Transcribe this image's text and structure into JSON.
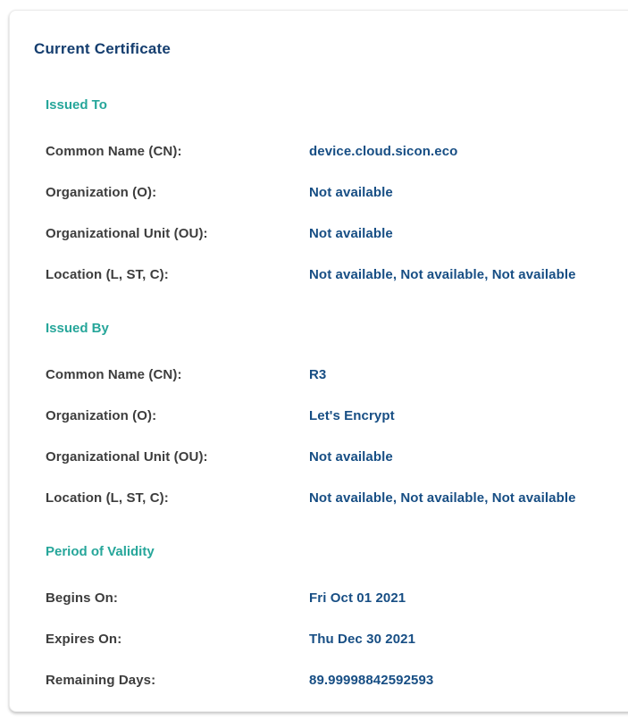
{
  "card": {
    "title": "Current Certificate",
    "sections": [
      {
        "title": "Issued To",
        "rows": [
          {
            "label": "Common Name (CN):",
            "value": "device.cloud.sicon.eco"
          },
          {
            "label": "Organization (O):",
            "value": "Not available"
          },
          {
            "label": "Organizational Unit (OU):",
            "value": "Not available"
          },
          {
            "label": "Location (L, ST, C):",
            "value": "Not available, Not available, Not available"
          }
        ]
      },
      {
        "title": "Issued By",
        "rows": [
          {
            "label": "Common Name (CN):",
            "value": "R3"
          },
          {
            "label": "Organization (O):",
            "value": "Let's Encrypt"
          },
          {
            "label": "Organizational Unit (OU):",
            "value": "Not available"
          },
          {
            "label": "Location (L, ST, C):",
            "value": "Not available, Not available, Not available"
          }
        ]
      },
      {
        "title": "Period of Validity",
        "rows": [
          {
            "label": "Begins On:",
            "value": "Fri Oct 01 2021"
          },
          {
            "label": "Expires On:",
            "value": "Thu Dec 30 2021"
          },
          {
            "label": "Remaining Days:",
            "value": "89.99998842592593"
          }
        ]
      }
    ]
  },
  "colors": {
    "title_navy": "#153e6f",
    "value_navy": "#174e84",
    "section_teal": "#26a69a",
    "label_gray": "#3d3d3d",
    "card_background": "#ffffff"
  }
}
